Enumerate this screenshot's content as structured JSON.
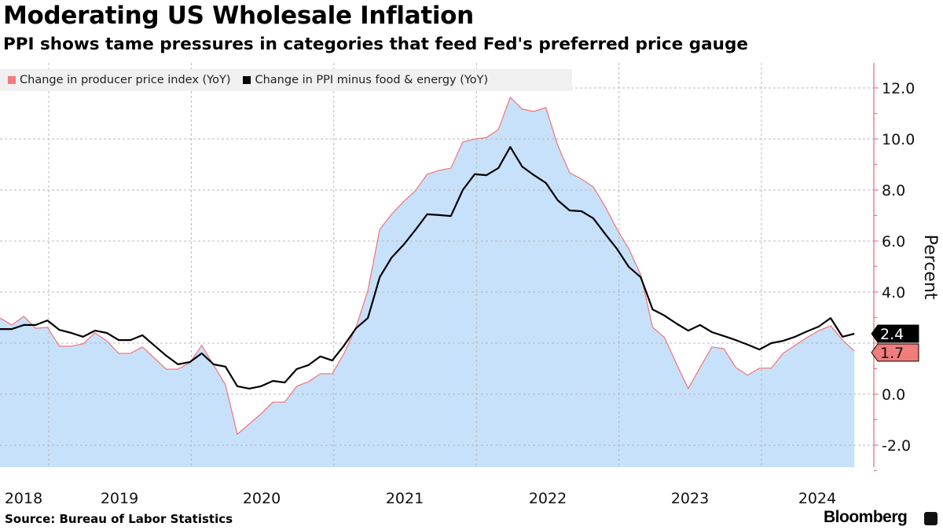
{
  "header": {
    "title": "Moderating US Wholesale Inflation",
    "subtitle": "PPI shows tame pressures in categories that feed Fed's preferred price gauge"
  },
  "footer": {
    "source": "Source: Bureau of Labor Statistics",
    "brand": "Bloomberg"
  },
  "colors": {
    "ppi": "#f07c7c",
    "core": "#000000",
    "fill": "#c8e1fb",
    "axis": "#e06a6a",
    "grid": "#b8b8b8"
  },
  "chart_data": {
    "type": "line",
    "title": "Moderating US Wholesale Inflation",
    "ylabel": "Percent",
    "xlabel": "",
    "ylim": [
      -2.85,
      12.8
    ],
    "yticks": [
      "12.0",
      "10.0",
      "8.0",
      "6.0",
      "4.0",
      "0.0",
      "-2.0"
    ],
    "ytick_values": [
      12,
      10,
      8,
      6,
      4,
      0,
      -2
    ],
    "x_tick_labels": [
      "2018",
      "2019",
      "2020",
      "2021",
      "2022",
      "2023",
      "2024"
    ],
    "start_month": "2018-09",
    "frequency": "monthly",
    "grid": true,
    "legend_position": "top-left",
    "series": [
      {
        "name": "Change in producer price index (YoY)",
        "last_label": "1.7",
        "values": [
          2.98,
          2.71,
          3.05,
          2.58,
          2.62,
          1.88,
          1.88,
          1.97,
          2.4,
          2.09,
          1.6,
          1.6,
          1.85,
          1.42,
          0.98,
          0.98,
          1.23,
          1.91,
          1.14,
          0.37,
          -1.57,
          -1.17,
          -0.77,
          -0.31,
          -0.31,
          0.31,
          0.49,
          0.8,
          0.8,
          1.6,
          2.62,
          4.06,
          6.46,
          7.05,
          7.54,
          7.97,
          8.62,
          8.77,
          8.86,
          9.88,
          10.0,
          10.06,
          10.37,
          11.63,
          11.17,
          11.08,
          11.23,
          9.75,
          8.68,
          8.43,
          8.12,
          7.35,
          6.46,
          5.69,
          4.68,
          2.62,
          2.22,
          1.2,
          0.22,
          1.05,
          1.85,
          1.78,
          1.05,
          0.74,
          1.02,
          1.02,
          1.6,
          1.91,
          2.22,
          2.49,
          2.68,
          2.12,
          1.69
        ]
      },
      {
        "name": "Change in PPI minus food & energy (YoY)",
        "last_label": "2.4",
        "values": [
          2.55,
          2.55,
          2.71,
          2.71,
          2.89,
          2.52,
          2.4,
          2.25,
          2.49,
          2.4,
          2.12,
          2.12,
          2.31,
          1.91,
          1.51,
          1.17,
          1.26,
          1.6,
          1.17,
          1.08,
          0.31,
          0.22,
          0.31,
          0.52,
          0.46,
          0.98,
          1.14,
          1.48,
          1.32,
          1.91,
          2.58,
          2.98,
          4.58,
          5.35,
          5.85,
          6.43,
          7.05,
          7.02,
          6.98,
          8.0,
          8.62,
          8.58,
          8.86,
          9.69,
          8.92,
          8.58,
          8.28,
          7.6,
          7.2,
          7.17,
          6.89,
          6.28,
          5.69,
          4.98,
          4.58,
          3.32,
          3.08,
          2.77,
          2.49,
          2.71,
          2.43,
          2.28,
          2.12,
          1.94,
          1.75,
          2.0,
          2.09,
          2.25,
          2.46,
          2.65,
          2.98,
          2.25,
          2.37
        ]
      }
    ]
  }
}
